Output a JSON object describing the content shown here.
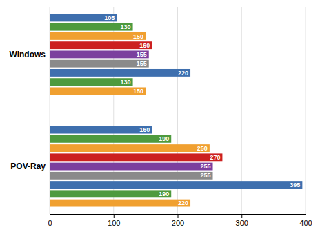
{
  "chart_data": {
    "type": "bar",
    "orientation": "horizontal",
    "categories": [
      "Windows",
      "POV-Ray"
    ],
    "series": [
      {
        "color": "#3e6fae",
        "values": [
          105,
          160
        ]
      },
      {
        "color": "#4e9a3e",
        "values": [
          130,
          190
        ]
      },
      {
        "color": "#f0a030",
        "values": [
          150,
          250
        ]
      },
      {
        "color": "#cc2020",
        "values": [
          160,
          270
        ]
      },
      {
        "color": "#7b3f9e",
        "values": [
          155,
          255
        ]
      },
      {
        "color": "#8a8a8a",
        "values": [
          155,
          255
        ]
      },
      {
        "color": "#3e6fae",
        "values": [
          220,
          395
        ]
      },
      {
        "color": "#4e9a3e",
        "values": [
          130,
          190
        ]
      },
      {
        "color": "#f0a030",
        "values": [
          150,
          220
        ]
      }
    ],
    "xlim": [
      0,
      400
    ],
    "xticks": [
      0,
      100,
      200,
      300,
      400
    ],
    "grid": true,
    "data_labels": true
  }
}
